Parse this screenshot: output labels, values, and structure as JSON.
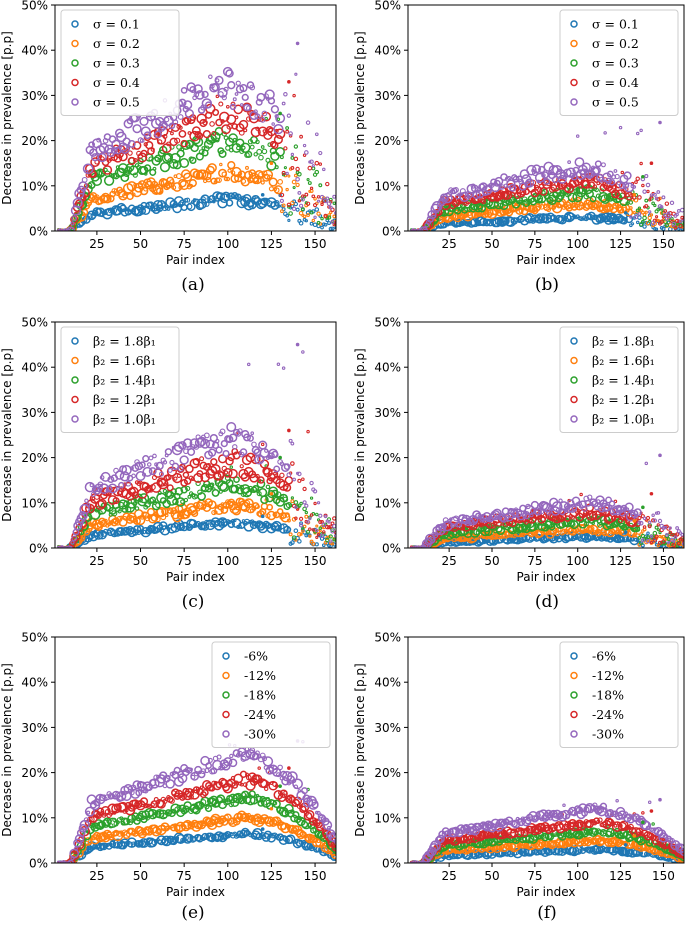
{
  "colors": [
    "#1f77b4",
    "#ff7f0e",
    "#2ca02c",
    "#d62728",
    "#9467bd"
  ],
  "chart_data": [
    {
      "id": "a",
      "caption": "(a)",
      "type": "scatter",
      "xlabel": "Pair index",
      "ylabel": "Decrease in prevalence [p.p]",
      "xlim": [
        1,
        162
      ],
      "ylim": [
        0,
        50
      ],
      "xticks": [
        25,
        50,
        75,
        100,
        125,
        150
      ],
      "yticks": [
        0,
        10,
        20,
        30,
        40,
        50
      ],
      "ytick_labels": [
        "0%",
        "10%",
        "20%",
        "30%",
        "40%",
        "50%"
      ],
      "legend_position": "top-left",
      "pattern": {
        "peak_index": 100,
        "tail_start": 130,
        "scatter": "wide"
      },
      "series": [
        {
          "name": "σ = 0.1",
          "peak": 7.0,
          "max_outlier": 8.0
        },
        {
          "name": "σ = 0.2",
          "peak": 13.0,
          "max_outlier": 15.0
        },
        {
          "name": "σ = 0.3",
          "peak": 20.0,
          "max_outlier": 26.0
        },
        {
          "name": "σ = 0.4",
          "peak": 26.0,
          "max_outlier": 33.0
        },
        {
          "name": "σ = 0.5",
          "peak": 32.0,
          "max_outlier": 41.5
        }
      ]
    },
    {
      "id": "b",
      "caption": "(b)",
      "type": "scatter",
      "xlabel": "Pair index",
      "ylabel": "Decrease in prevalence [p.p]",
      "xlim": [
        1,
        162
      ],
      "ylim": [
        0,
        50
      ],
      "xticks": [
        25,
        50,
        75,
        100,
        125,
        150
      ],
      "yticks": [
        0,
        10,
        20,
        30,
        40,
        50
      ],
      "ytick_labels": [
        "0%",
        "10%",
        "20%",
        "30%",
        "40%",
        "50%"
      ],
      "legend_position": "top-right",
      "pattern": {
        "peak_index": 100,
        "tail_start": 130,
        "scatter": "wide"
      },
      "series": [
        {
          "name": "σ = 0.1",
          "peak": 3.0,
          "max_outlier": 4.0
        },
        {
          "name": "σ = 0.2",
          "peak": 6.0,
          "max_outlier": 8.0
        },
        {
          "name": "σ = 0.3",
          "peak": 8.5,
          "max_outlier": 12.0
        },
        {
          "name": "σ = 0.4",
          "peak": 11.0,
          "max_outlier": 15.0
        },
        {
          "name": "σ = 0.5",
          "peak": 14.0,
          "max_outlier": 24.0
        }
      ]
    },
    {
      "id": "c",
      "caption": "(c)",
      "type": "scatter",
      "xlabel": "Pair index",
      "ylabel": "Decrease in prevalence [p.p]",
      "xlim": [
        1,
        162
      ],
      "ylim": [
        0,
        50
      ],
      "xticks": [
        25,
        50,
        75,
        100,
        125,
        150
      ],
      "yticks": [
        0,
        10,
        20,
        30,
        40,
        50
      ],
      "ytick_labels": [
        "0%",
        "10%",
        "20%",
        "30%",
        "40%",
        "50%"
      ],
      "legend_position": "top-left",
      "pattern": {
        "peak_index": 100,
        "tail_start": 135,
        "scatter": "wide"
      },
      "series": [
        {
          "name": "β₂ = 1.8β₁",
          "peak": 5.5,
          "max_outlier": 7.0
        },
        {
          "name": "β₂ = 1.6β₁",
          "peak": 9.5,
          "max_outlier": 12.0
        },
        {
          "name": "β₂ = 1.4β₁",
          "peak": 14.0,
          "max_outlier": 20.0
        },
        {
          "name": "β₂ = 1.2β₁",
          "peak": 19.0,
          "max_outlier": 26.0
        },
        {
          "name": "β₂ = 1.0β₁",
          "peak": 24.0,
          "max_outlier": 45.0
        }
      ]
    },
    {
      "id": "d",
      "caption": "(d)",
      "type": "scatter",
      "xlabel": "Pair index",
      "ylabel": "Decrease in prevalence [p.p]",
      "xlim": [
        1,
        162
      ],
      "ylim": [
        0,
        50
      ],
      "xticks": [
        25,
        50,
        75,
        100,
        125,
        150
      ],
      "yticks": [
        0,
        10,
        20,
        30,
        40,
        50
      ],
      "ytick_labels": [
        "0%",
        "10%",
        "20%",
        "30%",
        "40%",
        "50%"
      ],
      "legend_position": "top-right",
      "pattern": {
        "peak_index": 105,
        "tail_start": 135,
        "scatter": "wide"
      },
      "series": [
        {
          "name": "β₂ = 1.8β₁",
          "peak": 2.5,
          "max_outlier": 3.5
        },
        {
          "name": "β₂ = 1.6β₁",
          "peak": 4.0,
          "max_outlier": 6.0
        },
        {
          "name": "β₂ = 1.4β₁",
          "peak": 6.0,
          "max_outlier": 9.0
        },
        {
          "name": "β₂ = 1.2β₁",
          "peak": 8.0,
          "max_outlier": 12.0
        },
        {
          "name": "β₂ = 1.0β₁",
          "peak": 10.0,
          "max_outlier": 20.5
        }
      ]
    },
    {
      "id": "e",
      "caption": "(e)",
      "type": "scatter",
      "xlabel": "Pair index",
      "ylabel": "Decrease in prevalence [p.p]",
      "xlim": [
        1,
        162
      ],
      "ylim": [
        0,
        50
      ],
      "xticks": [
        25,
        50,
        75,
        100,
        125,
        150
      ],
      "yticks": [
        0,
        10,
        20,
        30,
        40,
        50
      ],
      "ytick_labels": [
        "0%",
        "10%",
        "20%",
        "30%",
        "40%",
        "50%"
      ],
      "legend_position": "top-right",
      "pattern": {
        "peak_index": 110,
        "tail_start": 162,
        "scatter": "narrow"
      },
      "series": [
        {
          "name": "-6%",
          "peak": 6.5,
          "max_outlier": 7.5
        },
        {
          "name": "-12%",
          "peak": 10.0,
          "max_outlier": 12.0
        },
        {
          "name": "-18%",
          "peak": 14.5,
          "max_outlier": 17.0
        },
        {
          "name": "-24%",
          "peak": 18.5,
          "max_outlier": 21.0
        },
        {
          "name": "-30%",
          "peak": 24.0,
          "max_outlier": 27.0
        }
      ]
    },
    {
      "id": "f",
      "caption": "(f)",
      "type": "scatter",
      "xlabel": "Pair index",
      "ylabel": "Decrease in prevalence [p.p]",
      "xlim": [
        1,
        162
      ],
      "ylim": [
        0,
        50
      ],
      "xticks": [
        25,
        50,
        75,
        100,
        125,
        150
      ],
      "yticks": [
        0,
        10,
        20,
        30,
        40,
        50
      ],
      "ytick_labels": [
        "0%",
        "10%",
        "20%",
        "30%",
        "40%",
        "50%"
      ],
      "legend_position": "top-right",
      "pattern": {
        "peak_index": 110,
        "tail_start": 162,
        "scatter": "narrow"
      },
      "series": [
        {
          "name": "-6%",
          "peak": 3.0,
          "max_outlier": 4.0
        },
        {
          "name": "-12%",
          "peak": 5.0,
          "max_outlier": 6.0
        },
        {
          "name": "-18%",
          "peak": 7.0,
          "max_outlier": 9.0
        },
        {
          "name": "-24%",
          "peak": 9.0,
          "max_outlier": 11.5
        },
        {
          "name": "-30%",
          "peak": 12.0,
          "max_outlier": 14.0
        }
      ]
    }
  ]
}
